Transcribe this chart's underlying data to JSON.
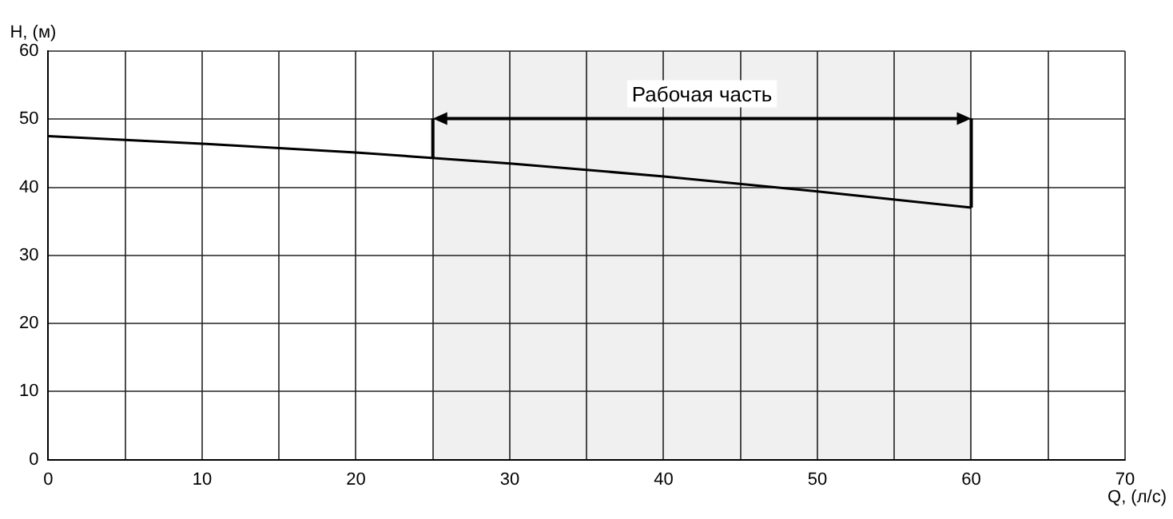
{
  "chart_data": {
    "type": "line",
    "xlabel": "Q, (л/с)",
    "ylabel": "H, (м)",
    "x": [
      0,
      10,
      20,
      30,
      40,
      50,
      60
    ],
    "series": [
      {
        "color": "#000000",
        "values": [
          47.5,
          46.4,
          45.1,
          43.5,
          41.6,
          39.4,
          37.0
        ]
      }
    ],
    "xlim": [
      0,
      70
    ],
    "xticks": [
      0,
      {
        "value": 5,
        "label": null
      },
      10,
      {
        "value": 15,
        "label": null
      },
      20,
      {
        "value": 25,
        "label": null
      },
      30,
      {
        "value": 35,
        "label": null
      },
      40,
      {
        "value": 45,
        "label": null
      },
      50,
      {
        "value": 55,
        "label": null
      },
      60,
      {
        "value": 65,
        "label": null
      },
      70
    ],
    "ylim": [
      0,
      60
    ],
    "yticks": [
      0,
      10,
      20,
      30,
      40,
      50,
      60
    ],
    "bands": [
      {
        "axis": "x",
        "from": 25,
        "to": 60,
        "label": "Рабочая часть",
        "color": "#000000"
      }
    ],
    "grid": true,
    "marker": "none",
    "line_style": "solid",
    "legend": false
  }
}
